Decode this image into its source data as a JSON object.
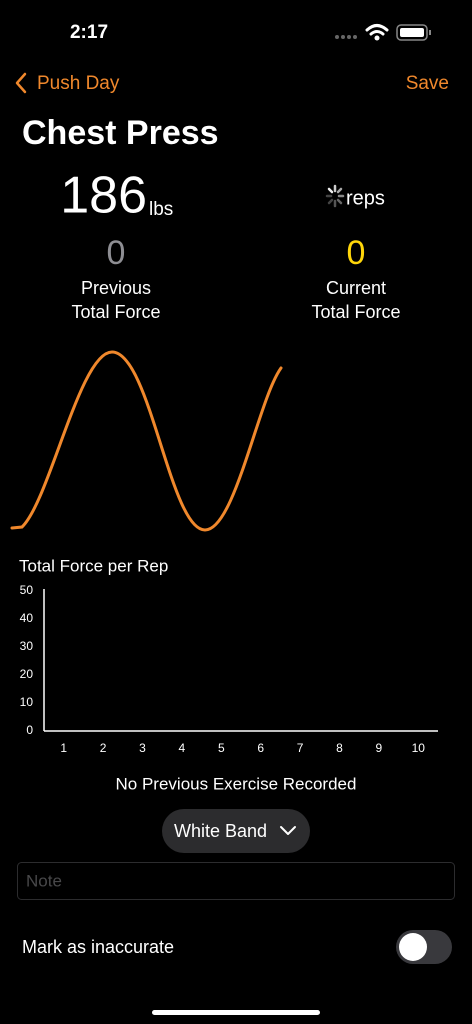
{
  "status_bar": {
    "time": "2:17"
  },
  "nav": {
    "back": "Push Day",
    "save": "Save"
  },
  "title": "Chest Press",
  "weight": {
    "value": "186",
    "unit": "lbs"
  },
  "reps": {
    "unit": "reps"
  },
  "previous": {
    "value": "0",
    "label_lines": [
      "Previous",
      "Total Force"
    ]
  },
  "current": {
    "value": "0",
    "label_lines": [
      "Current",
      "Total Force"
    ]
  },
  "chart": {
    "type": "bar",
    "title": "Total Force per Rep",
    "xlim": [
      0.5,
      10.5
    ],
    "xticks": [
      1,
      2,
      3,
      4,
      5,
      6,
      7,
      8,
      9,
      10
    ],
    "ylim": [
      0,
      50
    ],
    "yticks": [
      0,
      10,
      20,
      30,
      40,
      50
    ]
  },
  "message": "No Previous Exercise Recorded",
  "band": "White Band",
  "note_placeholder": "Note",
  "toggle": {
    "label": "Mark as inaccurate"
  }
}
